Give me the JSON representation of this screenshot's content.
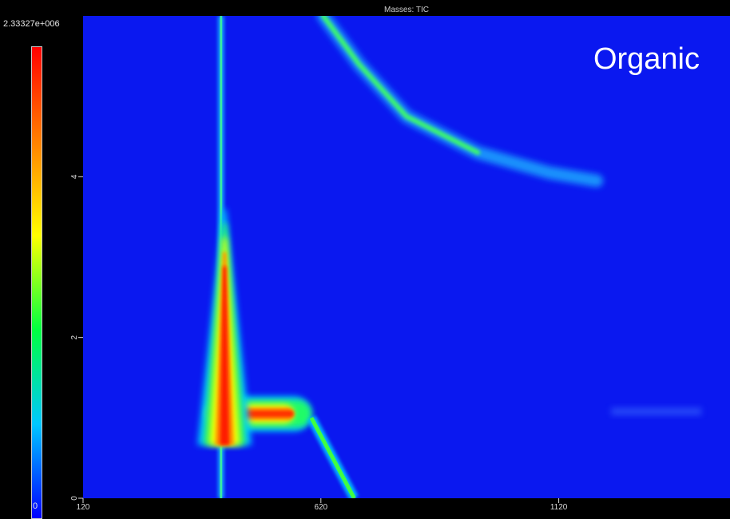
{
  "chart_data": {
    "type": "heatmap",
    "title": "Masses: TIC",
    "annotation": "Organic",
    "colorbar": {
      "max_label": "2.33327e+006",
      "min_label": "0",
      "colors": [
        "#0000ff",
        "#00c8ff",
        "#00ff40",
        "#ffff00",
        "#ff8000",
        "#ff0000"
      ]
    },
    "x_axis": {
      "ticks": [
        120,
        620,
        1120
      ],
      "range": [
        120,
        1480
      ]
    },
    "y_axis": {
      "ticks": [
        0,
        2,
        4
      ],
      "range": [
        0,
        6
      ]
    },
    "background_color": "#0a18f0",
    "features": [
      {
        "name": "vertical-column-band",
        "x": 410,
        "y_range": [
          0,
          6
        ]
      },
      {
        "name": "intense-peak-ridge",
        "x_range": [
          395,
          460
        ],
        "y_range": [
          0.6,
          3.6
        ],
        "peak_y": 3.2
      },
      {
        "name": "horizontal-plateau",
        "x_range": [
          390,
          600
        ],
        "y": 1.05
      },
      {
        "name": "descending-diagonal",
        "points": [
          [
            600,
            1.0
          ],
          [
            690,
            0.0
          ]
        ]
      },
      {
        "name": "upper-curve",
        "points": [
          [
            625,
            6.0
          ],
          [
            700,
            5.4
          ],
          [
            800,
            4.75
          ],
          [
            950,
            4.3
          ],
          [
            1100,
            4.05
          ],
          [
            1200,
            3.95
          ]
        ]
      },
      {
        "name": "faint-band-right",
        "x_range": [
          1230,
          1420
        ],
        "y": 1.08
      }
    ]
  }
}
